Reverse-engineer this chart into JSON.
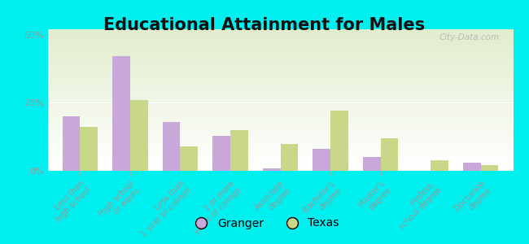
{
  "title": "Educational Attainment for Males",
  "categories": [
    "Less than\nhigh school",
    "High school\nor equiv.",
    "Less than\n1 year of college",
    "1 or more\nyears of college",
    "Associate\ndegree",
    "Bachelor's\ndegree",
    "Master's\ndegree",
    "Profess.\nschool degree",
    "Doctorate\ndegree"
  ],
  "granger_values": [
    20,
    42,
    18,
    13,
    1,
    8,
    5,
    0,
    3
  ],
  "texas_values": [
    16,
    26,
    9,
    15,
    10,
    22,
    12,
    4,
    2
  ],
  "granger_color": "#c8a8d8",
  "texas_color": "#c8d888",
  "background_color": "#00efef",
  "ylim": [
    0,
    52
  ],
  "yticks": [
    0,
    25,
    50
  ],
  "ytick_labels": [
    "0%",
    "25%",
    "50%"
  ],
  "legend_labels": [
    "Granger",
    "Texas"
  ],
  "bar_width": 0.35,
  "title_fontsize": 15,
  "tick_fontsize": 7,
  "legend_fontsize": 10
}
